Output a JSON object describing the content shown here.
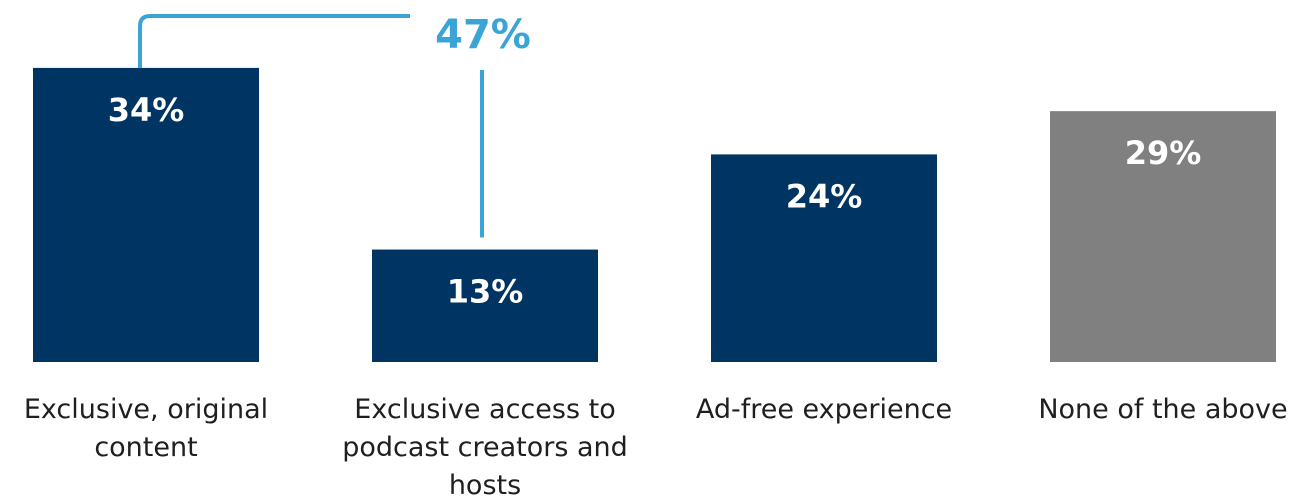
{
  "chart_data": {
    "type": "bar",
    "categories": [
      [
        "Exclusive, original",
        "content"
      ],
      [
        "Exclusive access to",
        "podcast creators and",
        "hosts"
      ],
      [
        "Ad-free experience"
      ],
      [
        "None of the above"
      ]
    ],
    "values": [
      34,
      13,
      24,
      29
    ],
    "value_labels": [
      "34%",
      "13%",
      "24%",
      "29%"
    ],
    "bar_colors": [
      "#003462",
      "#003462",
      "#003462",
      "#808080"
    ],
    "ylim": [
      0,
      36
    ],
    "grid": false,
    "annotation": {
      "type": "bracket",
      "spans_categories": [
        0,
        1
      ],
      "label": "47%",
      "color": "#3ba4d6"
    }
  }
}
